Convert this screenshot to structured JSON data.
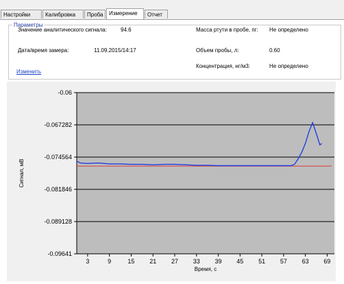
{
  "tabs": [
    {
      "label": "Настройки"
    },
    {
      "label": "Калибровка"
    },
    {
      "label": "Проба"
    },
    {
      "label": "Измерение"
    },
    {
      "label": "Отчет"
    }
  ],
  "params": {
    "legend": "Параметры",
    "signal_label": "Значение аналитического сигнала:",
    "signal_value": "94.6",
    "datetime_label": "Дата/время замера:",
    "datetime_value": "11.09.2015/14:17",
    "mass_label": "Масса ртути в пробе, пг:",
    "mass_value": "Не определено",
    "volume_label": "Объем пробы, л:",
    "volume_value": "0.60",
    "conc_label": "Концентрация, нг/м3:",
    "conc_value": "Не определено",
    "edit_link": "Изменить"
  },
  "colors": {
    "plot_background": "#bdbdbd",
    "signal_line": "#1f3fe0",
    "baseline": "#e03b3b",
    "grid": "#000000"
  },
  "chart_data": {
    "type": "line",
    "xlabel": "Время, с",
    "ylabel": "Сигнал, мВ",
    "xlim": [
      0,
      71
    ],
    "ylim": [
      -0.09641,
      -0.06
    ],
    "x_ticks": [
      "3",
      "9",
      "15",
      "21",
      "27",
      "33",
      "39",
      "45",
      "51",
      "57",
      "63",
      "69"
    ],
    "y_ticks": [
      "-0.06",
      "-0.067282",
      "-0.074564",
      "-0.081846",
      "-0.089128",
      "-0.09641"
    ],
    "baseline": -0.0766,
    "series": [
      {
        "x": [
          0,
          1,
          3,
          6,
          9,
          12,
          15,
          18,
          21,
          24,
          27,
          30,
          33,
          36,
          39,
          42,
          45,
          48,
          51,
          54,
          57,
          59,
          60,
          61,
          62,
          63,
          64,
          65,
          66,
          67,
          67.5
        ],
        "y": [
          -0.0755,
          -0.0759,
          -0.076,
          -0.0759,
          -0.0761,
          -0.0761,
          -0.0762,
          -0.0762,
          -0.0763,
          -0.0762,
          -0.0762,
          -0.0763,
          -0.0764,
          -0.0764,
          -0.0765,
          -0.0765,
          -0.0765,
          -0.0765,
          -0.0765,
          -0.0765,
          -0.0765,
          -0.0765,
          -0.0762,
          -0.075,
          -0.0735,
          -0.0715,
          -0.0688,
          -0.0668,
          -0.0692,
          -0.0718,
          -0.0715
        ]
      }
    ]
  }
}
